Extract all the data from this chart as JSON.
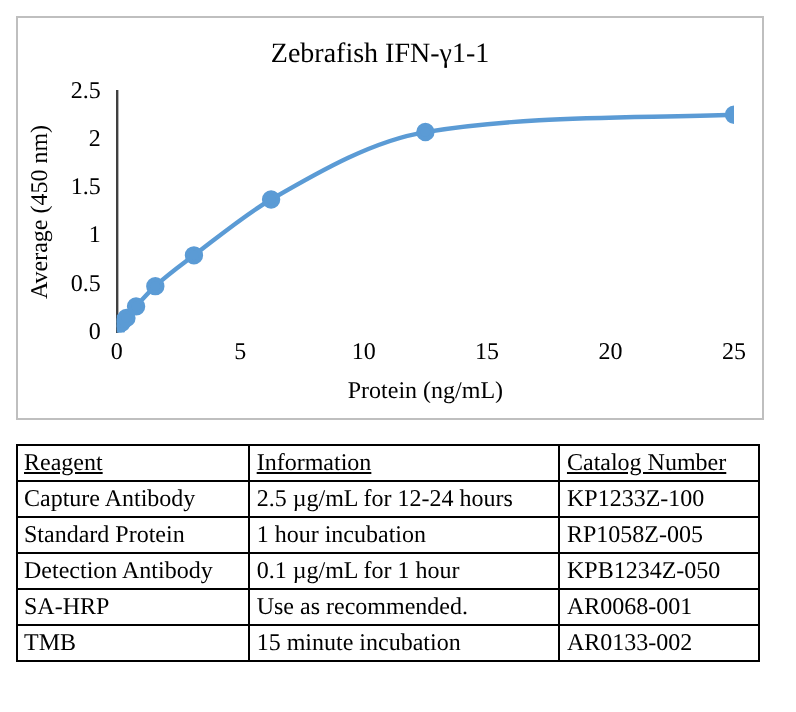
{
  "chart_data": {
    "type": "line",
    "title": "Zebrafish IFN-γ1-1",
    "xlabel": "Protein (ng/mL)",
    "ylabel": "Average (450 nm)",
    "x": [
      0,
      0.195,
      0.39,
      0.78,
      1.56,
      3.125,
      6.25,
      12.5,
      25
    ],
    "series": [
      {
        "color": "#5b9bd5",
        "values": [
          0.05,
          0.1,
          0.15,
          0.27,
          0.48,
          0.8,
          1.38,
          2.08,
          2.26
        ]
      }
    ],
    "xlim": [
      0,
      25
    ],
    "xticks": [
      0,
      5,
      10,
      15,
      20,
      25
    ],
    "ylim": [
      0,
      2.5
    ],
    "yticks": [
      0,
      0.5,
      1,
      1.5,
      2,
      2.5
    ],
    "grid": false,
    "legend": false,
    "marker": "circle",
    "line_style": "solid",
    "annotations": [
      "Reagent",
      "Information",
      "Catalog Number",
      "Capture Antibody",
      "2.5 µg/mL for 12-24 hours",
      "KP1233Z-100",
      "Standard Protein",
      "1 hour incubation",
      "RP1058Z-005",
      "Detection Antibody",
      "0.1 µg/mL for 1 hour",
      "KPB1234Z-050",
      "SA-HRP",
      "Use as recommended.",
      "AR0068-001",
      "TMB",
      "15 minute incubation",
      "AR0133-002"
    ]
  }
}
